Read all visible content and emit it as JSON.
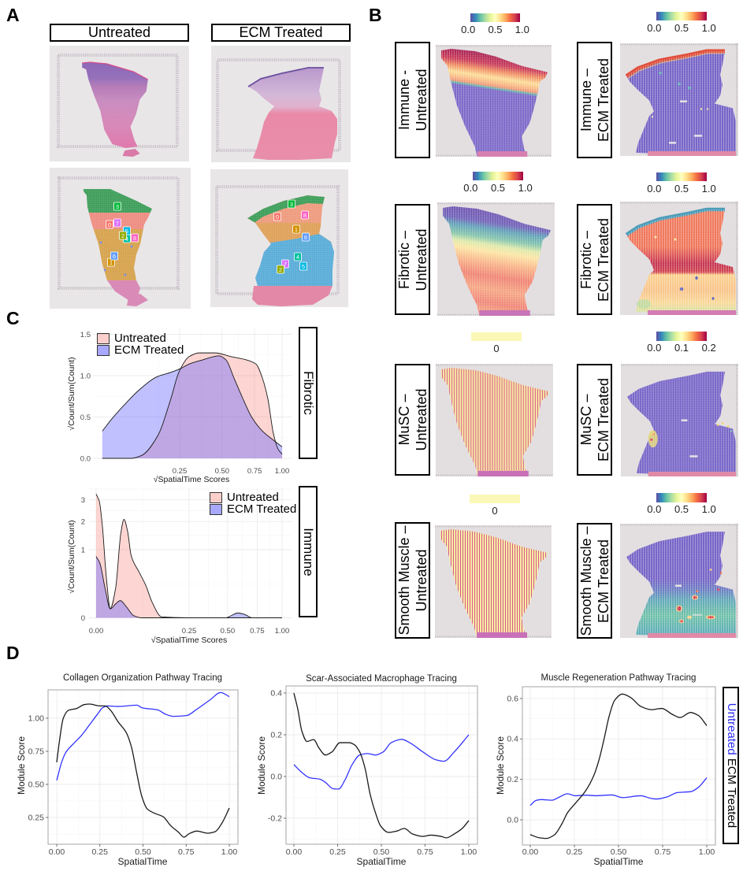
{
  "panel_a": {
    "label": "A",
    "untreated_title": "Untreated",
    "ecm_title": "ECM Treated",
    "cluster_colors": {
      "0": "#F8766D",
      "1": "#D39200",
      "2": "#93AA00",
      "3": "#00BA38",
      "4": "#00C19F",
      "5": "#00B9E3",
      "6": "#619CFF",
      "7": "#DB72FB",
      "8": "#FF61C3"
    },
    "untreated_clusters": [
      "3",
      "0",
      "7",
      "4",
      "5",
      "2",
      "8",
      "1",
      "6"
    ],
    "ecm_clusters": [
      "3",
      "0",
      "8",
      "1",
      "6",
      "4",
      "7",
      "5",
      "2"
    ]
  },
  "panel_b": {
    "label": "B",
    "palette": [
      "#5E4FA2",
      "#3288BD",
      "#66C2A5",
      "#ABDDA4",
      "#E6F598",
      "#FFFFBF",
      "#FEE08B",
      "#FDAE61",
      "#F46D43",
      "#D53E4F",
      "#9E0142"
    ],
    "constant_color": "#FBF8B7",
    "tiles": [
      {
        "key": "immune-untreated",
        "title_line1": "Immune -",
        "title_line2": "Untreated",
        "scale_ticks": [
          "0.0",
          "0.5",
          "1.0"
        ]
      },
      {
        "key": "immune-ecm",
        "title_line1": "Immune –",
        "title_line2": "ECM Treated",
        "scale_ticks": [
          "0.0",
          "0.5",
          "1.0"
        ]
      },
      {
        "key": "fibrotic-untreated",
        "title_line1": "Fibrotic –",
        "title_line2": "Untreated",
        "scale_ticks": [
          "0.0",
          "0.5",
          "1.0"
        ]
      },
      {
        "key": "fibrotic-ecm",
        "title_line1": "Fibrotic –",
        "title_line2": "ECM Treated",
        "scale_ticks": [
          "0.0",
          "0.5",
          "1.0"
        ]
      },
      {
        "key": "musc-untreated",
        "title_line1": "MuSC –",
        "title_line2": "Untreated",
        "scale_ticks": [
          "0"
        ]
      },
      {
        "key": "musc-ecm",
        "title_line1": "MuSC –",
        "title_line2": "ECM Treated",
        "scale_ticks": [
          "0.0",
          "0.1",
          "0.2"
        ]
      },
      {
        "key": "smooth-muscle-untreated",
        "title_line1": "Smooth Muscle –",
        "title_line2": "Untreated",
        "scale_ticks": [
          "0"
        ]
      },
      {
        "key": "smooth-muscle-ecm",
        "title_line1": "Smooth Muscle –",
        "title_line2": "ECM Treated",
        "scale_ticks": [
          "0.0",
          "0.5",
          "1.0"
        ]
      }
    ]
  },
  "panel_c": {
    "label": "C"
  },
  "panel_d": {
    "label": "D",
    "legend": {
      "untreated": "Untreated",
      "ecm": "ECM Treated",
      "untreated_color": "#3333FF",
      "ecm_color": "#1A1A1A"
    }
  },
  "chart_data": [
    {
      "id": "fibrotic-density",
      "type": "area",
      "strip_label": "Fibrotic",
      "title": "",
      "xlabel": "√SpatialTime Scores",
      "ylabel": "√Count/Sum(Count)",
      "x_scale": "sqrt",
      "y_scale": "linear",
      "xlim": [
        0.006,
        1.09
      ],
      "ylim": [
        -0.03,
        1.57
      ],
      "x_ticks": [
        0.25,
        0.5,
        0.75,
        1.0
      ],
      "x_tick_labels": [
        "0.25",
        "0.50",
        "0.75",
        "1.00"
      ],
      "y_ticks": [
        0,
        0.5,
        1.0,
        1.5
      ],
      "y_tick_labels": [
        "0.0",
        "0.5",
        "1.0",
        "1.5"
      ],
      "grid": true,
      "legend": "top-left",
      "series": [
        {
          "name": "Untreated",
          "fill": "#F8766D",
          "alpha": 0.3,
          "x": [
            0.015,
            0.07,
            0.099,
            0.154,
            0.209,
            0.246,
            0.298,
            0.355,
            0.453,
            0.563,
            0.684,
            0.762,
            0.817,
            0.866,
            0.917,
            0.962,
            1.0
          ],
          "y": [
            0,
            0,
            0.035,
            0.27,
            0.72,
            1.04,
            1.23,
            1.275,
            1.275,
            1.23,
            1.19,
            1.14,
            0.97,
            0.72,
            0.3,
            0.11,
            0.05
          ]
        },
        {
          "name": "ECM Treated",
          "fill": "#6161FF",
          "alpha": 0.4,
          "x": [
            0.015,
            0.03,
            0.057,
            0.092,
            0.154,
            0.209,
            0.258,
            0.298,
            0.374,
            0.479,
            0.528,
            0.586,
            0.646,
            0.729,
            0.817,
            0.917,
            1.0
          ],
          "y": [
            0.33,
            0.49,
            0.67,
            0.83,
            0.99,
            1.04,
            1.09,
            1.14,
            1.19,
            1.24,
            1.19,
            0.97,
            0.75,
            0.49,
            0.33,
            0.22,
            0.14
          ]
        }
      ]
    },
    {
      "id": "immune-density",
      "type": "area",
      "strip_label": "Immune",
      "title": "",
      "xlabel": "√SpatialTime Scores",
      "ylabel": "√Count/Sum(Count)",
      "x_scale": "sqrt",
      "y_scale": "sqrt",
      "xlim": [
        0,
        1.1
      ],
      "ylim": [
        0,
        3.6
      ],
      "x_ticks": [
        0,
        0.25,
        0.5,
        0.75,
        1.0
      ],
      "x_tick_labels": [
        "0.00",
        "0.25",
        "0.50",
        "0.75",
        "1.00"
      ],
      "y_ticks": [
        0,
        1,
        2,
        3
      ],
      "y_tick_labels": [
        "0",
        "1",
        "2",
        "3"
      ],
      "grid": true,
      "legend": "top-right",
      "series": [
        {
          "name": "Untreated",
          "fill": "#F8766D",
          "alpha": 0.3,
          "x": [
            0,
            0.0003,
            0.0011,
            0.003,
            0.0058,
            0.011,
            0.0177,
            0.0224,
            0.0283,
            0.0358,
            0.0537,
            0.0713,
            0.091,
            0.124,
            0.3,
            0.6,
            1.0
          ],
          "y": [
            3.3,
            2.92,
            1.85,
            0.354,
            0.019,
            0.19,
            1.55,
            2.09,
            1.65,
            0.82,
            0.446,
            0.227,
            0.051,
            0.0002,
            0,
            0,
            0
          ]
        },
        {
          "name": "ECM Treated",
          "fill": "#6161FF",
          "alpha": 0.4,
          "x": [
            0,
            0.0004,
            0.0023,
            0.0058,
            0.011,
            0.0169,
            0.026,
            0.041,
            0.06,
            0.3,
            0.487,
            0.527,
            0.58,
            0.635,
            0.704,
            1.0
          ],
          "y": [
            0.81,
            0.645,
            0.19,
            0.017,
            0.042,
            0.064,
            0.028,
            0.001,
            0,
            0,
            0,
            0.001,
            0.005,
            0.0027,
            0,
            0
          ]
        }
      ]
    },
    {
      "id": "collagen-organization",
      "type": "line",
      "title": "Collagen Organization Pathway Tracing",
      "xlabel": "SpatialTime",
      "ylabel": "Module Score",
      "xlim": [
        -0.05,
        1.05
      ],
      "ylim": [
        0.048,
        1.214
      ],
      "x_ticks": [
        0,
        0.25,
        0.5,
        0.75,
        1.0
      ],
      "x_tick_labels": [
        "0.00",
        "0.25",
        "0.50",
        "0.75",
        "1.00"
      ],
      "y_ticks": [
        0.25,
        0.5,
        0.75,
        1.0
      ],
      "y_tick_labels": [
        "0.25",
        "0.50",
        "0.75",
        "1.00"
      ],
      "grid": true,
      "series": [
        {
          "name": "Untreated",
          "color": "#3333FF",
          "x": [
            0,
            0.03,
            0.053,
            0.099,
            0.144,
            0.19,
            0.236,
            0.266,
            0.296,
            0.357,
            0.464,
            0.494,
            0.585,
            0.631,
            0.676,
            0.752,
            0.813,
            0.889,
            0.95,
            1.0
          ],
          "y": [
            0.53,
            0.673,
            0.742,
            0.81,
            0.871,
            0.95,
            1.03,
            1.079,
            1.093,
            1.089,
            1.099,
            1.079,
            1.063,
            1.03,
            1.014,
            1.02,
            1.069,
            1.139,
            1.194,
            1.163
          ]
        },
        {
          "name": "ECM Treated",
          "color": "#1A1A1A",
          "x": [
            0,
            0.015,
            0.038,
            0.068,
            0.114,
            0.16,
            0.19,
            0.251,
            0.281,
            0.312,
            0.357,
            0.403,
            0.433,
            0.464,
            0.494,
            0.524,
            0.57,
            0.616,
            0.661,
            0.707,
            0.737,
            0.767,
            0.813,
            0.874,
            0.919,
            0.957,
            1.0
          ],
          "y": [
            0.667,
            0.82,
            1.0,
            1.06,
            1.073,
            1.103,
            1.107,
            1.093,
            1.093,
            1.06,
            0.97,
            0.891,
            0.782,
            0.583,
            0.405,
            0.315,
            0.28,
            0.256,
            0.187,
            0.137,
            0.101,
            0.127,
            0.147,
            0.131,
            0.143,
            0.206,
            0.321
          ]
        }
      ]
    },
    {
      "id": "scar-associated-macrophage",
      "type": "line",
      "title": "Scar-Associated Macrophage Tracing",
      "xlabel": "SpatialTime",
      "ylabel": "Module Score",
      "xlim": [
        -0.05,
        1.05
      ],
      "ylim": [
        -0.325,
        0.434
      ],
      "x_ticks": [
        0,
        0.25,
        0.5,
        0.75,
        1.0
      ],
      "x_tick_labels": [
        "0.00",
        "0.25",
        "0.50",
        "0.75",
        "1.00"
      ],
      "y_ticks": [
        -0.2,
        0.0,
        0.2,
        0.4
      ],
      "y_tick_labels": [
        "-0.2",
        "0.0",
        "0.2",
        "0.4"
      ],
      "grid": true,
      "series": [
        {
          "name": "Untreated",
          "color": "#3333FF",
          "x": [
            0,
            0.045,
            0.09,
            0.15,
            0.18,
            0.226,
            0.256,
            0.293,
            0.331,
            0.376,
            0.421,
            0.466,
            0.511,
            0.556,
            0.617,
            0.662,
            0.737,
            0.812,
            0.857,
            0.917,
            1.0
          ],
          "y": [
            0.057,
            0.02,
            -0.006,
            -0.013,
            -0.028,
            -0.059,
            -0.06,
            -0.015,
            0.054,
            0.103,
            0.11,
            0.103,
            0.118,
            0.162,
            0.178,
            0.162,
            0.118,
            0.08,
            0.073,
            0.118,
            0.2
          ]
        },
        {
          "name": "ECM Treated",
          "color": "#1A1A1A",
          "x": [
            0,
            0.023,
            0.045,
            0.075,
            0.113,
            0.143,
            0.18,
            0.218,
            0.263,
            0.316,
            0.346,
            0.376,
            0.406,
            0.436,
            0.466,
            0.496,
            0.541,
            0.586,
            0.632,
            0.677,
            0.737,
            0.782,
            0.842,
            0.872,
            0.917,
            0.962,
            1.0
          ],
          "y": [
            0.4,
            0.32,
            0.219,
            0.168,
            0.177,
            0.137,
            0.103,
            0.118,
            0.162,
            0.162,
            0.152,
            0.118,
            0.042,
            -0.085,
            -0.173,
            -0.237,
            -0.268,
            -0.262,
            -0.249,
            -0.275,
            -0.287,
            -0.281,
            -0.287,
            -0.294,
            -0.275,
            -0.249,
            -0.211
          ]
        }
      ]
    },
    {
      "id": "muscle-regeneration",
      "type": "line",
      "title": "Muscle Regeneration Pathway Tracing",
      "xlabel": "SpatialTime",
      "ylabel": "Module Score",
      "xlim": [
        -0.05,
        1.05
      ],
      "ylim": [
        -0.125,
        0.658
      ],
      "x_ticks": [
        0,
        0.25,
        0.5,
        0.75,
        1.0
      ],
      "x_tick_labels": [
        "0.00",
        "0.25",
        "0.50",
        "0.75",
        "1.00"
      ],
      "y_ticks": [
        0.0,
        0.2,
        0.4,
        0.6
      ],
      "y_tick_labels": [
        "0.0",
        "0.2",
        "0.4",
        "0.6"
      ],
      "grid": true,
      "series": [
        {
          "name": "Untreated",
          "color": "#3333FF",
          "x": [
            0,
            0.033,
            0.062,
            0.122,
            0.166,
            0.211,
            0.255,
            0.315,
            0.374,
            0.463,
            0.522,
            0.626,
            0.685,
            0.715,
            0.774,
            0.834,
            0.908,
            0.953,
            1.0
          ],
          "y": [
            0.071,
            0.096,
            0.1,
            0.097,
            0.113,
            0.129,
            0.119,
            0.122,
            0.119,
            0.123,
            0.11,
            0.119,
            0.106,
            0.103,
            0.113,
            0.135,
            0.139,
            0.161,
            0.208
          ]
        },
        {
          "name": "ECM Treated",
          "color": "#1A1A1A",
          "x": [
            0,
            0.047,
            0.092,
            0.136,
            0.181,
            0.211,
            0.255,
            0.315,
            0.359,
            0.389,
            0.418,
            0.448,
            0.478,
            0.522,
            0.567,
            0.626,
            0.685,
            0.745,
            0.804,
            0.849,
            0.908,
            0.953,
            1.0
          ],
          "y": [
            -0.073,
            -0.088,
            -0.092,
            -0.075,
            -0.017,
            0.035,
            0.081,
            0.145,
            0.217,
            0.295,
            0.399,
            0.516,
            0.591,
            0.622,
            0.606,
            0.561,
            0.545,
            0.551,
            0.522,
            0.506,
            0.531,
            0.516,
            0.466
          ]
        }
      ]
    }
  ]
}
